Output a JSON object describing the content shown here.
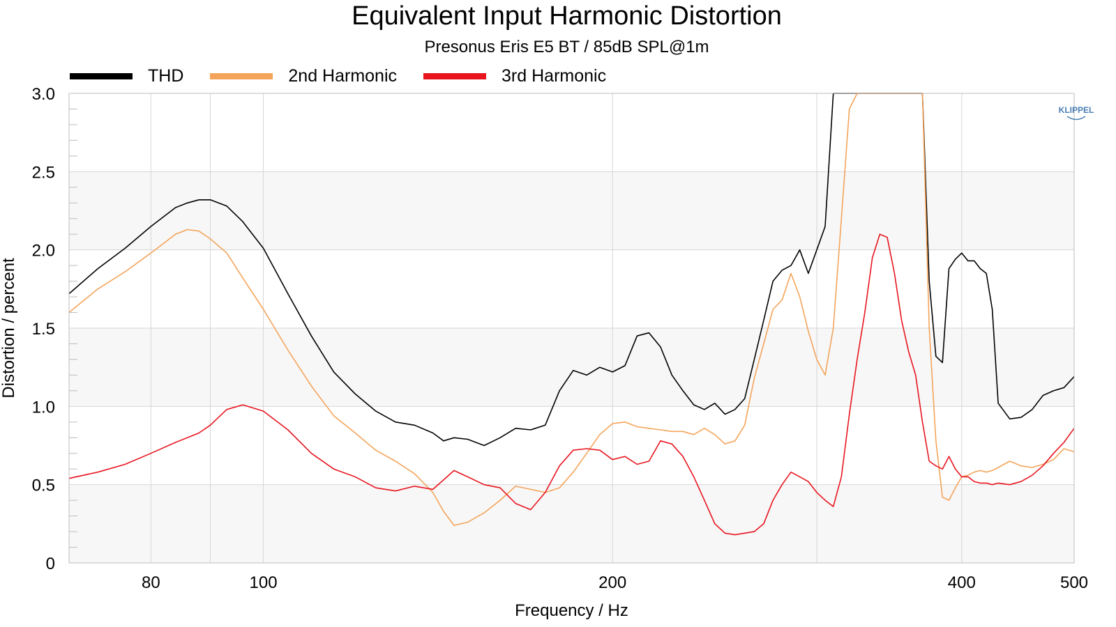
{
  "chart_data": {
    "type": "line",
    "title": "Equivalent Input Harmonic Distortion",
    "subtitle": "Presonus Eris E5 BT / 85dB SPL@1m",
    "xlabel": "Frequency / Hz",
    "ylabel": "Distortion / percent",
    "xscale": "log",
    "xlim": [
      68,
      500
    ],
    "ylim": [
      0,
      3
    ],
    "xticks": [
      {
        "value": 80,
        "label": "80"
      },
      {
        "value": 100,
        "label": "100"
      },
      {
        "value": 200,
        "label": "200"
      },
      {
        "value": 400,
        "label": "400"
      },
      {
        "value": 500,
        "label": "500"
      }
    ],
    "yticks": [
      {
        "value": 0,
        "label": "0"
      },
      {
        "value": 0.5,
        "label": "0.5"
      },
      {
        "value": 1.0,
        "label": "1.0"
      },
      {
        "value": 1.5,
        "label": "1.5"
      },
      {
        "value": 2.0,
        "label": "2.0"
      },
      {
        "value": 2.5,
        "label": "2.5"
      },
      {
        "value": 3.0,
        "label": "3.0"
      }
    ],
    "grid": true,
    "legend_position": "top-left",
    "watermark": "KLIPPEL",
    "series": [
      {
        "name": "THD",
        "color": "#000000",
        "x": [
          68,
          72,
          76,
          80,
          84,
          86,
          88,
          90,
          93,
          96,
          100,
          105,
          110,
          115,
          120,
          125,
          130,
          135,
          140,
          143,
          146,
          150,
          155,
          160,
          165,
          170,
          175,
          180,
          185,
          190,
          195,
          200,
          205,
          210,
          215,
          220,
          225,
          230,
          235,
          240,
          245,
          250,
          255,
          260,
          265,
          270,
          275,
          280,
          285,
          290,
          295,
          300,
          305,
          310,
          315,
          320,
          325,
          330,
          335,
          340,
          345,
          350,
          355,
          360,
          365,
          370,
          375,
          380,
          385,
          390,
          395,
          400,
          405,
          410,
          415,
          420,
          425,
          430,
          440,
          450,
          460,
          470,
          480,
          490,
          500
        ],
        "y": [
          1.72,
          1.88,
          2.01,
          2.15,
          2.27,
          2.3,
          2.32,
          2.32,
          2.28,
          2.18,
          2.01,
          1.72,
          1.45,
          1.22,
          1.08,
          0.97,
          0.9,
          0.88,
          0.83,
          0.78,
          0.8,
          0.79,
          0.75,
          0.8,
          0.86,
          0.85,
          0.88,
          1.1,
          1.23,
          1.2,
          1.25,
          1.22,
          1.26,
          1.45,
          1.47,
          1.38,
          1.2,
          1.1,
          1.01,
          0.98,
          1.02,
          0.95,
          0.98,
          1.05,
          1.3,
          1.55,
          1.8,
          1.87,
          1.9,
          2.0,
          1.85,
          2.0,
          2.15,
          3.0,
          3.0,
          3.0,
          3.0,
          3.0,
          3.0,
          3.0,
          3.0,
          3.0,
          3.0,
          3.0,
          3.0,
          3.0,
          1.8,
          1.32,
          1.28,
          1.88,
          1.94,
          1.98,
          1.93,
          1.93,
          1.88,
          1.85,
          1.62,
          1.02,
          0.92,
          0.93,
          0.98,
          1.07,
          1.1,
          1.12,
          1.19
        ]
      },
      {
        "name": "2nd Harmonic",
        "color": "#f4a45a",
        "x": [
          68,
          72,
          76,
          80,
          84,
          86,
          88,
          90,
          93,
          96,
          100,
          105,
          110,
          115,
          120,
          125,
          130,
          135,
          140,
          143,
          146,
          150,
          155,
          160,
          165,
          170,
          175,
          180,
          185,
          190,
          195,
          200,
          205,
          210,
          215,
          220,
          225,
          230,
          235,
          240,
          245,
          250,
          255,
          260,
          265,
          270,
          275,
          280,
          285,
          290,
          295,
          300,
          305,
          310,
          315,
          320,
          325,
          330,
          335,
          340,
          345,
          350,
          355,
          360,
          365,
          370,
          375,
          380,
          385,
          390,
          395,
          400,
          405,
          410,
          415,
          420,
          425,
          430,
          440,
          450,
          460,
          470,
          480,
          490,
          500
        ],
        "y": [
          1.6,
          1.75,
          1.86,
          1.98,
          2.1,
          2.13,
          2.12,
          2.07,
          1.98,
          1.82,
          1.62,
          1.36,
          1.13,
          0.94,
          0.83,
          0.72,
          0.65,
          0.57,
          0.45,
          0.33,
          0.24,
          0.26,
          0.32,
          0.4,
          0.49,
          0.47,
          0.45,
          0.48,
          0.58,
          0.7,
          0.82,
          0.89,
          0.9,
          0.87,
          0.86,
          0.85,
          0.84,
          0.84,
          0.82,
          0.86,
          0.82,
          0.76,
          0.78,
          0.88,
          1.18,
          1.4,
          1.62,
          1.68,
          1.85,
          1.7,
          1.48,
          1.3,
          1.2,
          1.5,
          2.2,
          2.9,
          3.0,
          3.0,
          3.0,
          3.0,
          3.0,
          3.0,
          3.0,
          3.0,
          3.0,
          3.0,
          1.5,
          0.78,
          0.42,
          0.4,
          0.48,
          0.55,
          0.56,
          0.58,
          0.59,
          0.58,
          0.59,
          0.61,
          0.65,
          0.62,
          0.61,
          0.63,
          0.66,
          0.73,
          0.71
        ]
      },
      {
        "name": "3rd Harmonic",
        "color": "#e8141e",
        "x": [
          68,
          72,
          76,
          80,
          84,
          86,
          88,
          90,
          93,
          96,
          100,
          105,
          110,
          115,
          120,
          125,
          130,
          135,
          140,
          143,
          146,
          150,
          155,
          160,
          165,
          170,
          175,
          180,
          185,
          190,
          195,
          200,
          205,
          210,
          215,
          220,
          225,
          230,
          235,
          240,
          245,
          250,
          255,
          260,
          265,
          270,
          275,
          280,
          285,
          290,
          295,
          300,
          305,
          310,
          315,
          320,
          325,
          330,
          335,
          340,
          345,
          350,
          355,
          360,
          365,
          370,
          375,
          380,
          385,
          390,
          395,
          400,
          405,
          410,
          415,
          420,
          425,
          430,
          440,
          450,
          460,
          470,
          480,
          490,
          500
        ],
        "y": [
          0.54,
          0.58,
          0.63,
          0.7,
          0.77,
          0.8,
          0.83,
          0.88,
          0.98,
          1.01,
          0.97,
          0.85,
          0.7,
          0.6,
          0.55,
          0.48,
          0.46,
          0.49,
          0.47,
          0.53,
          0.59,
          0.55,
          0.5,
          0.48,
          0.38,
          0.34,
          0.45,
          0.62,
          0.72,
          0.73,
          0.72,
          0.66,
          0.68,
          0.63,
          0.65,
          0.78,
          0.76,
          0.68,
          0.55,
          0.4,
          0.25,
          0.19,
          0.18,
          0.19,
          0.2,
          0.25,
          0.4,
          0.5,
          0.58,
          0.55,
          0.52,
          0.45,
          0.4,
          0.36,
          0.55,
          0.95,
          1.3,
          1.6,
          1.95,
          2.1,
          2.08,
          1.85,
          1.55,
          1.35,
          1.2,
          0.9,
          0.65,
          0.62,
          0.6,
          0.68,
          0.6,
          0.55,
          0.55,
          0.52,
          0.51,
          0.51,
          0.5,
          0.51,
          0.5,
          0.52,
          0.56,
          0.62,
          0.7,
          0.77,
          0.86
        ]
      }
    ]
  },
  "colors": {
    "plot_background": "#ffffff",
    "band_fill": "#f7f7f7",
    "grid": "#d6d6d6"
  }
}
